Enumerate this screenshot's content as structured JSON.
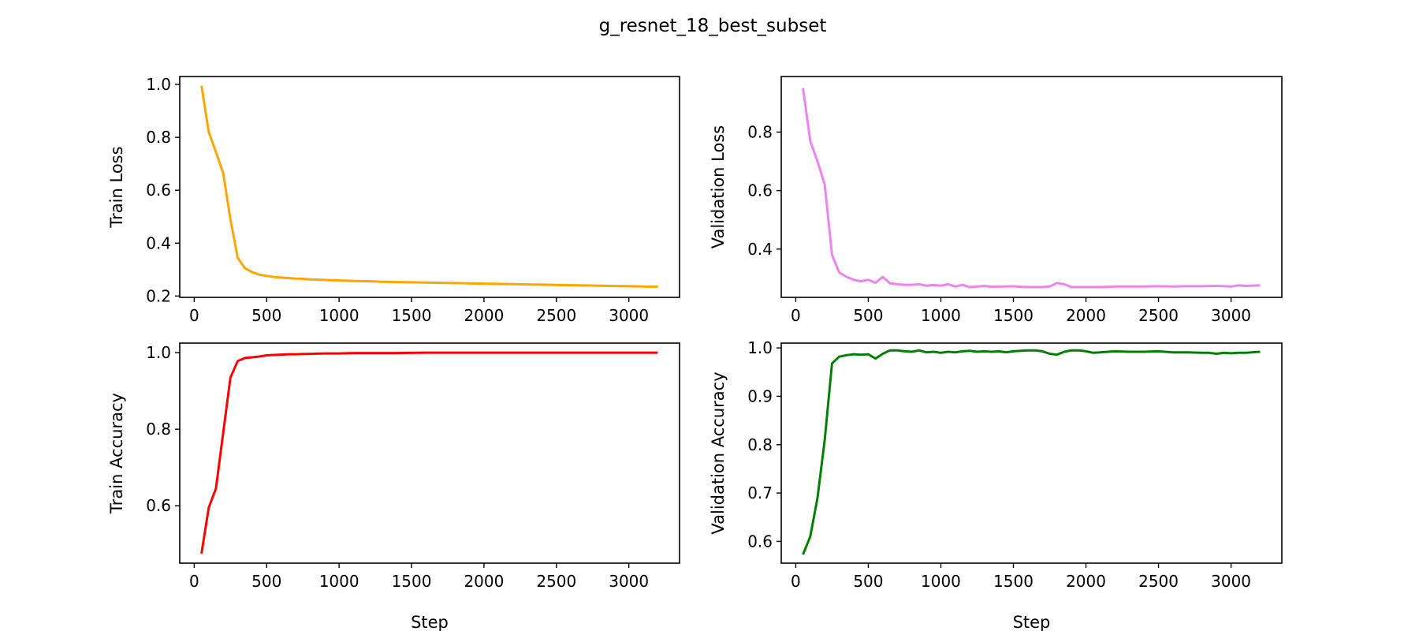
{
  "figure_title": "g_resnet_18_best_subset",
  "chart_data": [
    {
      "type": "line",
      "name": "train-loss",
      "xlabel": "",
      "ylabel": "Train Loss",
      "color": "#ffa500",
      "xlim": [
        -100,
        3350
      ],
      "ylim": [
        0.195,
        1.03
      ],
      "xticks": [
        0,
        500,
        1000,
        1500,
        2000,
        2500,
        3000
      ],
      "yticks": [
        0.2,
        0.4,
        0.6,
        0.8,
        1.0
      ],
      "ytick_labels": [
        "0.2",
        "0.4",
        "0.6",
        "0.8",
        "1.0"
      ],
      "x": [
        50,
        100,
        150,
        200,
        250,
        300,
        350,
        400,
        450,
        500,
        550,
        600,
        650,
        700,
        750,
        800,
        850,
        900,
        950,
        1000,
        1100,
        1200,
        1300,
        1400,
        1500,
        1600,
        1700,
        1800,
        1900,
        2000,
        2100,
        2200,
        2300,
        2400,
        2500,
        2600,
        2700,
        2800,
        2900,
        3000,
        3100,
        3200
      ],
      "y": [
        0.995,
        0.82,
        0.745,
        0.665,
        0.49,
        0.345,
        0.305,
        0.29,
        0.281,
        0.276,
        0.272,
        0.27,
        0.268,
        0.266,
        0.265,
        0.263,
        0.262,
        0.261,
        0.26,
        0.259,
        0.257,
        0.256,
        0.254,
        0.253,
        0.252,
        0.251,
        0.25,
        0.249,
        0.248,
        0.247,
        0.246,
        0.245,
        0.244,
        0.243,
        0.242,
        0.241,
        0.24,
        0.239,
        0.238,
        0.237,
        0.236,
        0.235
      ]
    },
    {
      "type": "line",
      "name": "validation-loss",
      "xlabel": "",
      "ylabel": "Validation Loss",
      "color": "#ee82ee",
      "xlim": [
        -100,
        3350
      ],
      "ylim": [
        0.235,
        0.99
      ],
      "xticks": [
        0,
        500,
        1000,
        1500,
        2000,
        2500,
        3000
      ],
      "yticks": [
        0.4,
        0.6,
        0.8
      ],
      "ytick_labels": [
        "0.4",
        "0.6",
        "0.8"
      ],
      "x": [
        50,
        100,
        150,
        200,
        250,
        300,
        350,
        400,
        450,
        500,
        550,
        600,
        650,
        700,
        750,
        800,
        850,
        900,
        950,
        1000,
        1050,
        1100,
        1150,
        1200,
        1250,
        1300,
        1350,
        1400,
        1450,
        1500,
        1550,
        1600,
        1650,
        1700,
        1750,
        1800,
        1850,
        1900,
        1950,
        2000,
        2100,
        2200,
        2300,
        2400,
        2500,
        2600,
        2700,
        2800,
        2900,
        3000,
        3050,
        3100,
        3200
      ],
      "y": [
        0.95,
        0.77,
        0.7,
        0.62,
        0.38,
        0.32,
        0.305,
        0.295,
        0.29,
        0.295,
        0.285,
        0.305,
        0.283,
        0.28,
        0.278,
        0.278,
        0.28,
        0.275,
        0.277,
        0.275,
        0.28,
        0.272,
        0.278,
        0.27,
        0.272,
        0.274,
        0.271,
        0.272,
        0.272,
        0.273,
        0.271,
        0.27,
        0.27,
        0.27,
        0.272,
        0.284,
        0.28,
        0.27,
        0.27,
        0.27,
        0.27,
        0.272,
        0.272,
        0.272,
        0.273,
        0.272,
        0.273,
        0.273,
        0.274,
        0.272,
        0.276,
        0.274,
        0.276
      ]
    },
    {
      "type": "line",
      "name": "train-accuracy",
      "xlabel": "Step",
      "ylabel": "Train Accuracy",
      "color": "#ff0000",
      "xlim": [
        -100,
        3350
      ],
      "ylim": [
        0.45,
        1.025
      ],
      "xticks": [
        0,
        500,
        1000,
        1500,
        2000,
        2500,
        3000
      ],
      "yticks": [
        0.6,
        0.8,
        1.0
      ],
      "ytick_labels": [
        "0.6",
        "0.8",
        "1.0"
      ],
      "x": [
        50,
        100,
        150,
        200,
        250,
        300,
        350,
        400,
        450,
        500,
        550,
        600,
        650,
        700,
        800,
        900,
        1000,
        1100,
        1200,
        1400,
        1600,
        2000,
        2500,
        3000,
        3200
      ],
      "y": [
        0.475,
        0.595,
        0.645,
        0.79,
        0.935,
        0.978,
        0.986,
        0.988,
        0.99,
        0.993,
        0.994,
        0.995,
        0.996,
        0.996,
        0.997,
        0.998,
        0.998,
        0.999,
        0.999,
        0.999,
        1.0,
        1.0,
        1.0,
        1.0,
        1.0
      ]
    },
    {
      "type": "line",
      "name": "validation-accuracy",
      "xlabel": "Step",
      "ylabel": "Validation Accuracy",
      "color": "#008000",
      "xlim": [
        -100,
        3350
      ],
      "ylim": [
        0.555,
        1.01
      ],
      "xticks": [
        0,
        500,
        1000,
        1500,
        2000,
        2500,
        3000
      ],
      "yticks": [
        0.6,
        0.7,
        0.8,
        0.9,
        1.0
      ],
      "ytick_labels": [
        "0.6",
        "0.7",
        "0.8",
        "0.9",
        "1.0"
      ],
      "x": [
        50,
        100,
        150,
        200,
        250,
        300,
        350,
        400,
        450,
        500,
        550,
        600,
        650,
        700,
        750,
        800,
        850,
        900,
        950,
        1000,
        1050,
        1100,
        1150,
        1200,
        1250,
        1300,
        1350,
        1400,
        1450,
        1500,
        1550,
        1600,
        1650,
        1700,
        1750,
        1800,
        1850,
        1900,
        1950,
        2000,
        2050,
        2100,
        2200,
        2300,
        2400,
        2500,
        2600,
        2700,
        2800,
        2850,
        2900,
        2950,
        3000,
        3050,
        3100,
        3200
      ],
      "y": [
        0.573,
        0.61,
        0.69,
        0.81,
        0.968,
        0.982,
        0.985,
        0.987,
        0.986,
        0.987,
        0.978,
        0.988,
        0.995,
        0.995,
        0.993,
        0.992,
        0.995,
        0.991,
        0.992,
        0.99,
        0.992,
        0.991,
        0.993,
        0.994,
        0.992,
        0.993,
        0.992,
        0.993,
        0.991,
        0.993,
        0.994,
        0.995,
        0.995,
        0.993,
        0.988,
        0.986,
        0.992,
        0.995,
        0.995,
        0.993,
        0.99,
        0.991,
        0.993,
        0.992,
        0.992,
        0.993,
        0.991,
        0.991,
        0.99,
        0.99,
        0.988,
        0.99,
        0.989,
        0.99,
        0.99,
        0.992
      ]
    }
  ]
}
